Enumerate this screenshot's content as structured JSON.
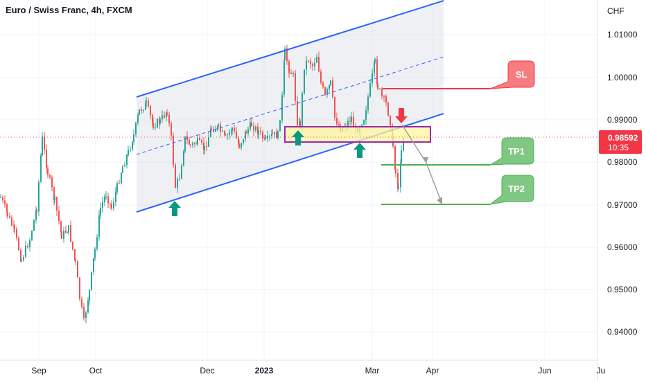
{
  "header": {
    "title": "Euro / Swiss Franc, 4h, FXCM"
  },
  "chart_data": {
    "type": "candlestick",
    "currency_label": "CHF",
    "y_ticks": [
      "1.01000",
      "1.00000",
      "0.99000",
      "0.98000",
      "0.97000",
      "0.96000",
      "0.95000",
      "0.94000"
    ],
    "x_ticks": [
      "Sep",
      "Oct",
      "Dec",
      "2023",
      "Mar",
      "Apr",
      "Jun",
      "Ju"
    ],
    "current_price": {
      "value": "0.98592",
      "countdown": "10:35"
    },
    "annotations": {
      "sl": "SL",
      "tp1": "TP1",
      "tp2": "TP2"
    },
    "colors": {
      "up": "#26a69a",
      "down": "#ef5350",
      "channel": "#2962ff",
      "sl": "#f77c80",
      "tp": "#81c784",
      "zone_fill": "#fff59d",
      "zone_border": "#9c27b0",
      "arrow_up": "#089981",
      "arrow_down": "#f23645"
    }
  }
}
